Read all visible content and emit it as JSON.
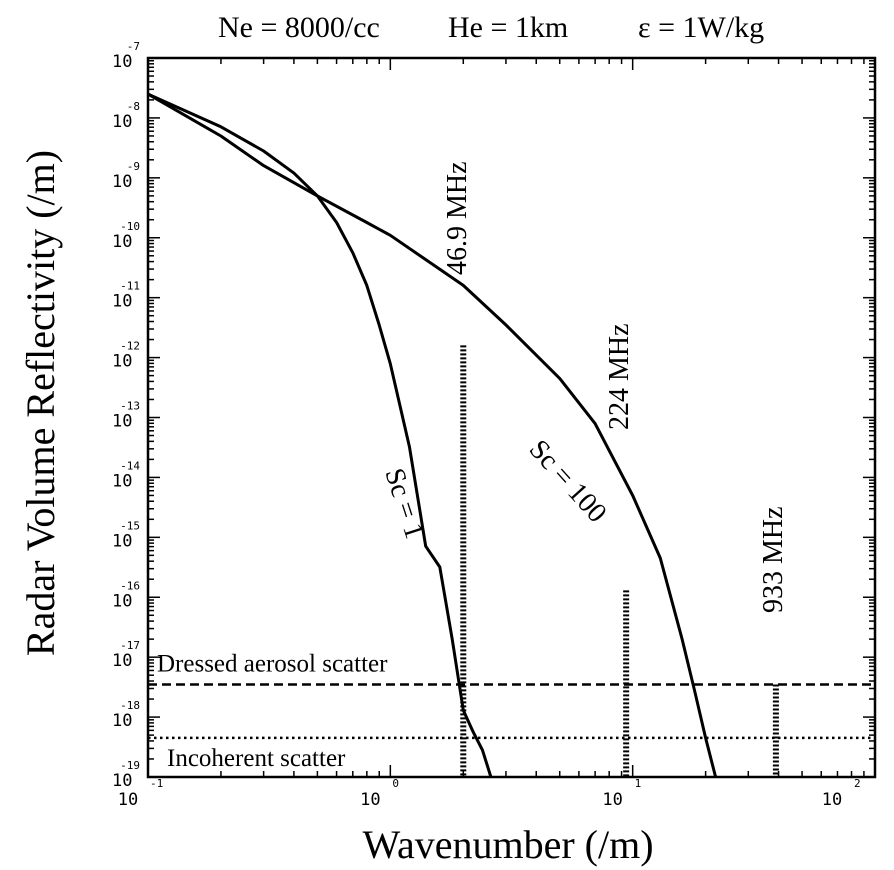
{
  "chart_data": {
    "type": "line",
    "title_parts": [
      "Ne = 8000/cc",
      "He = 1km",
      "ε  = 1W/kg"
    ],
    "xlabel": "Wavenumber (/m)",
    "ylabel": "Radar Volume Reflectivity (/m)",
    "x_scale": "log",
    "y_scale": "log",
    "xlim": [
      0.1,
      100
    ],
    "ylim": [
      1e-19,
      1e-07
    ],
    "x_ticks": [
      {
        "value": 0.1,
        "base": "10",
        "exp": "-1"
      },
      {
        "value": 1,
        "base": "10",
        "exp": "0"
      },
      {
        "value": 10,
        "base": "10",
        "exp": "1"
      },
      {
        "value": 100,
        "base": "10",
        "exp": "2"
      }
    ],
    "y_ticks": [
      {
        "value": 1e-07,
        "base": "10",
        "exp": "-7"
      },
      {
        "value": 1e-08,
        "base": "10",
        "exp": "-8"
      },
      {
        "value": 1e-09,
        "base": "10",
        "exp": "-9"
      },
      {
        "value": 1e-10,
        "base": "10",
        "exp": "-10"
      },
      {
        "value": 1e-11,
        "base": "10",
        "exp": "-11"
      },
      {
        "value": 1e-12,
        "base": "10",
        "exp": "-12"
      },
      {
        "value": 1e-13,
        "base": "10",
        "exp": "-13"
      },
      {
        "value": 1e-14,
        "base": "10",
        "exp": "-14"
      },
      {
        "value": 1e-15,
        "base": "10",
        "exp": "-15"
      },
      {
        "value": 1e-16,
        "base": "10",
        "exp": "-16"
      },
      {
        "value": 1e-17,
        "base": "10",
        "exp": "-17"
      },
      {
        "value": 1e-18,
        "base": "10",
        "exp": "-18"
      },
      {
        "value": 1e-19,
        "base": "10",
        "exp": "-19"
      }
    ],
    "series": [
      {
        "name": "Sc = 1",
        "x": [
          0.1,
          0.2,
          0.3,
          0.4,
          0.5,
          0.6,
          0.7,
          0.8,
          0.9,
          1.0,
          1.2,
          1.4,
          1.6,
          1.8,
          2.0,
          2.2,
          2.4,
          2.6
        ],
        "y": [
          2.5e-08,
          7.1e-09,
          2.8e-09,
          1.2e-09,
          5e-10,
          1.8e-10,
          5.6e-11,
          1.6e-11,
          3.5e-12,
          7.9e-13,
          3.2e-14,
          7.1e-16,
          3.2e-16,
          2e-17,
          1.3e-18,
          5.6e-19,
          2.8e-19,
          1e-19
        ]
      },
      {
        "name": "Sc = 100",
        "x": [
          0.1,
          0.2,
          0.3,
          0.5,
          0.8,
          1.0,
          2.0,
          3.0,
          5.0,
          7.0,
          10.0,
          13.0,
          16.0,
          18.0,
          20.0,
          22.0
        ],
        "y": [
          2.5e-08,
          5e-09,
          1.6e-09,
          5e-10,
          1.8e-10,
          1.1e-10,
          1.6e-11,
          3.5e-12,
          4.5e-13,
          7.9e-14,
          5e-15,
          4.5e-16,
          2e-17,
          2.8e-18,
          4.5e-19,
          1e-19
        ]
      }
    ],
    "reference_lines": [
      {
        "label": "Dressed aerosol scatter",
        "y": 3.5e-18,
        "style": "dashed"
      },
      {
        "label": "Incoherent scatter",
        "y": 4.5e-19,
        "style": "dotted"
      }
    ],
    "frequency_markers": [
      {
        "label": "46.9 MHz",
        "x": 2.0,
        "y_top": 1.6e-12
      },
      {
        "label": "224 MHz",
        "x": 9.4,
        "y_top": 1.3e-16
      },
      {
        "label": "933 MHz",
        "x": 39.0,
        "y_top": 3.5e-18
      }
    ],
    "curve_labels": [
      "Sc = 1",
      "Sc = 100"
    ],
    "grid": false,
    "legend": "none"
  }
}
